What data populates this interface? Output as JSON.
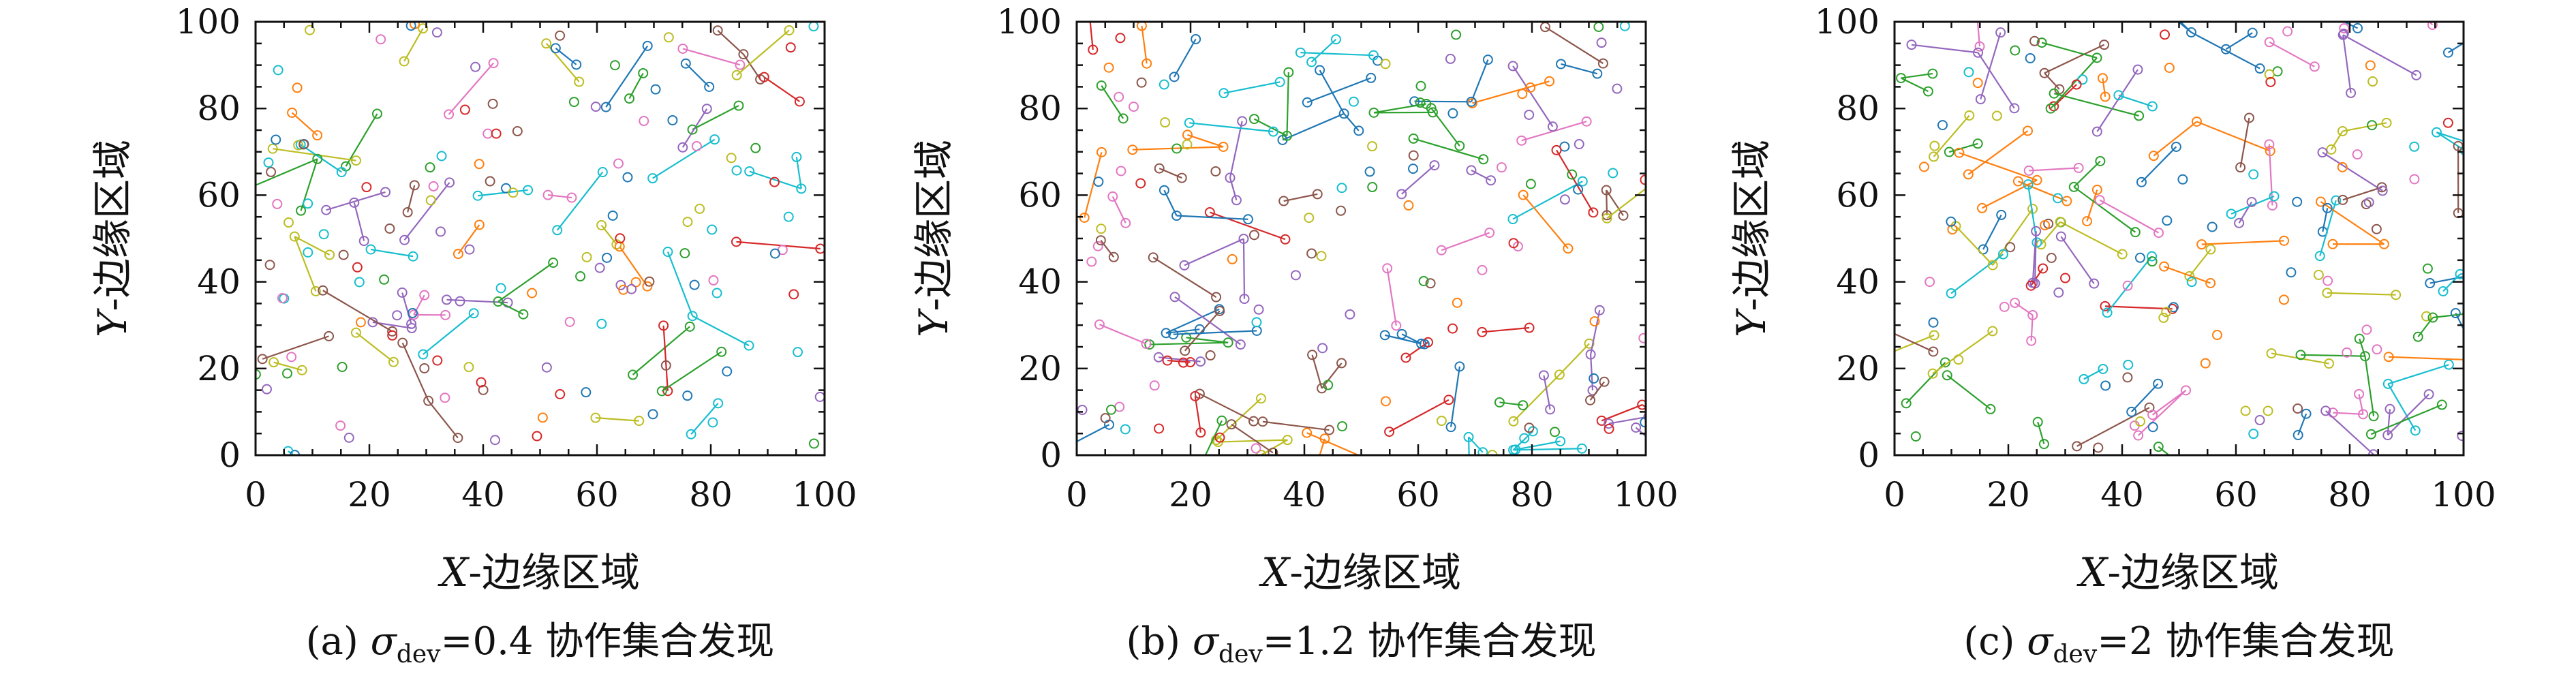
{
  "chart_data": [
    {
      "type": "scatter",
      "panel": "a",
      "caption": {
        "prefix": "(a) ",
        "symbol": "σ",
        "subscript": "dev",
        "suffix": "=0.4 协作集合发现"
      },
      "xlabel": {
        "italic": "X",
        "rest": "-边缘区域"
      },
      "ylabel": {
        "italic": "Y",
        "rest": "-边缘区域"
      },
      "xlim": [
        0,
        100
      ],
      "ylim": [
        0,
        100
      ],
      "xticks": [
        "0",
        "20",
        "40",
        "60",
        "80",
        "100"
      ],
      "yticks": [
        "0",
        "20",
        "40",
        "60",
        "80",
        "100"
      ],
      "grid": false,
      "seed": 11,
      "n_points": 170,
      "n_links": 60
    },
    {
      "type": "scatter",
      "panel": "b",
      "caption": {
        "prefix": "(b) ",
        "symbol": "σ",
        "subscript": "dev",
        "suffix": "=1.2 协作集合发现"
      },
      "xlabel": {
        "italic": "X",
        "rest": "-边缘区域"
      },
      "ylabel": {
        "italic": "Y",
        "rest": "-边缘区域"
      },
      "xlim": [
        0,
        100
      ],
      "ylim": [
        0,
        100
      ],
      "xticks": [
        "0",
        "20",
        "40",
        "60",
        "80",
        "100"
      ],
      "yticks": [
        "0",
        "20",
        "40",
        "60",
        "80",
        "100"
      ],
      "grid": false,
      "seed": 23,
      "n_points": 165,
      "n_links": 95
    },
    {
      "type": "scatter",
      "panel": "c",
      "caption": {
        "prefix": "(c) ",
        "symbol": "σ",
        "subscript": "dev",
        "suffix": "=2 协作集合发现"
      },
      "xlabel": {
        "italic": "X",
        "rest": "-边缘区域"
      },
      "ylabel": {
        "italic": "Y",
        "rest": "-边缘区域"
      },
      "xlim": [
        0,
        100
      ],
      "ylim": [
        0,
        100
      ],
      "xticks": [
        "0",
        "20",
        "40",
        "60",
        "80",
        "100"
      ],
      "yticks": [
        "0",
        "20",
        "40",
        "60",
        "80",
        "100"
      ],
      "grid": false,
      "seed": 37,
      "n_points": 160,
      "n_links": 105
    }
  ],
  "palette": [
    "#1f77b4",
    "#ff7f0e",
    "#2ca02c",
    "#d62728",
    "#9467bd",
    "#8c564b",
    "#e377c2",
    "#bcbd22",
    "#17becf"
  ]
}
